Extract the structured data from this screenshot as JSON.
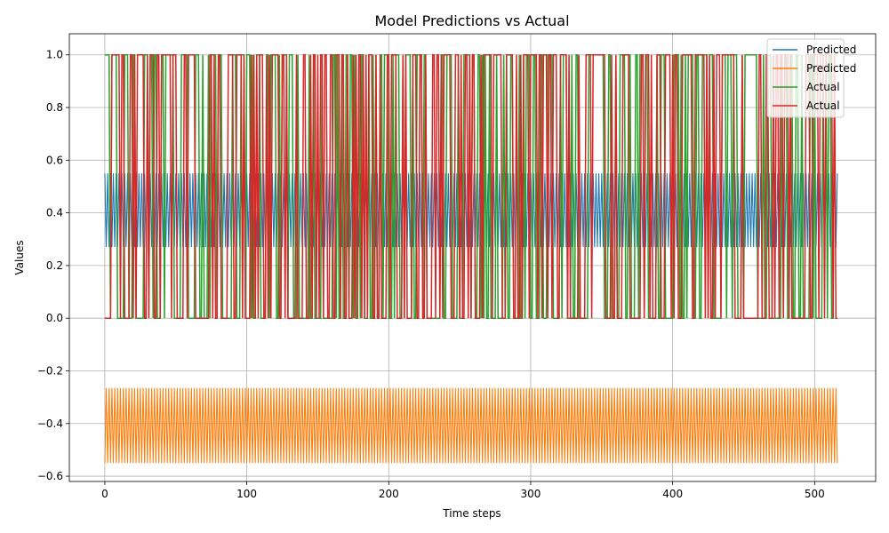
{
  "chart_data": {
    "type": "line",
    "title": "Model Predictions vs Actual",
    "xlabel": "Time steps",
    "ylabel": "Values",
    "xlim": [
      -25,
      543
    ],
    "ylim": [
      -0.62,
      1.08
    ],
    "xticks": [
      0,
      100,
      200,
      300,
      400,
      500
    ],
    "yticks": [
      -0.6,
      -0.4,
      -0.2,
      0.0,
      0.2,
      0.4,
      0.6,
      0.8,
      1.0
    ],
    "xtick_labels": [
      "0",
      "100",
      "200",
      "300",
      "400",
      "500"
    ],
    "ytick_labels": [
      "−0.6",
      "−0.4",
      "−0.2",
      "0.0",
      "0.2",
      "0.4",
      "0.6",
      "0.8",
      "1.0"
    ],
    "grid": true,
    "legend_position": "top-right",
    "n_points": 516,
    "series": [
      {
        "name": "Predicted",
        "color": "#1f77b4",
        "pattern": "oscillating",
        "low": 0.27,
        "high": 0.55,
        "start": 0.55
      },
      {
        "name": "Predicted",
        "color": "#ff7f0e",
        "pattern": "oscillating",
        "low": -0.55,
        "high": -0.265,
        "start": -0.55
      },
      {
        "name": "Actual",
        "color": "#2ca02c",
        "pattern": "binary",
        "values_set": [
          0,
          1
        ]
      },
      {
        "name": "Actual",
        "color": "#d62728",
        "pattern": "binary",
        "values_set": [
          0,
          1
        ]
      }
    ]
  }
}
